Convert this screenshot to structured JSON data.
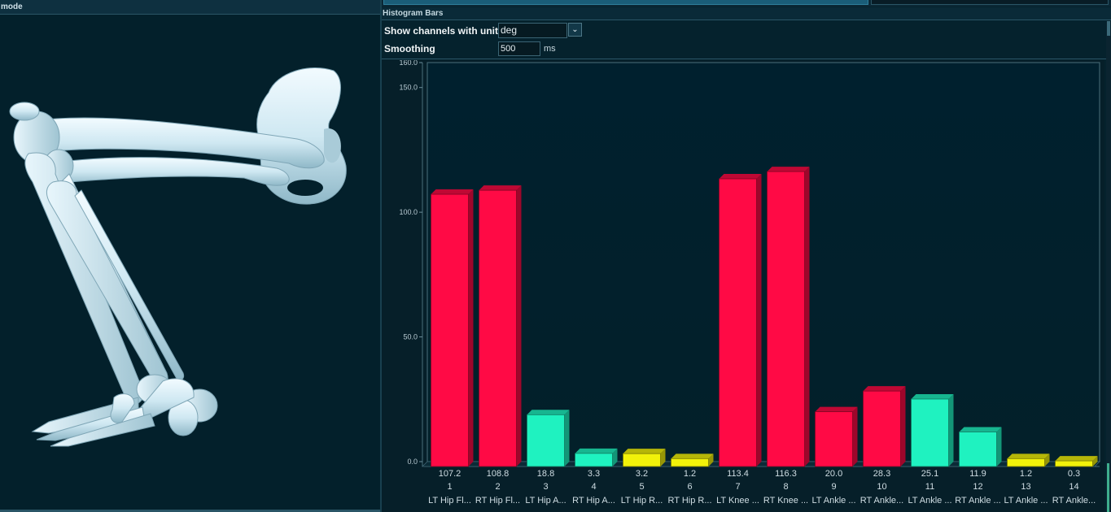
{
  "viewer": {
    "title": "mode"
  },
  "histogram": {
    "title": "Histogram Bars",
    "units_label": "Show channels with units",
    "units_value": "deg",
    "smoothing_label": "Smoothing",
    "smoothing_value": "500",
    "smoothing_unit": "ms"
  },
  "chart_data": {
    "type": "bar",
    "categories": [
      "LT Hip Fl...",
      "RT Hip Fl...",
      "LT Hip A...",
      "RT Hip A...",
      "LT Hip R...",
      "RT Hip R...",
      "LT Knee ...",
      "RT Knee ...",
      "LT Ankle ...",
      "RT Ankle...",
      "LT Ankle ...",
      "RT Ankle ...",
      "LT Ankle ...",
      "RT Ankle..."
    ],
    "indices": [
      "1",
      "2",
      "3",
      "4",
      "5",
      "6",
      "7",
      "8",
      "9",
      "10",
      "11",
      "12",
      "13",
      "14"
    ],
    "values": [
      107.2,
      108.8,
      18.8,
      3.3,
      3.2,
      1.2,
      113.4,
      116.3,
      20.0,
      28.3,
      25.1,
      11.9,
      1.2,
      0.3
    ],
    "value_labels": [
      "107.2",
      "108.8",
      "18.8",
      "3.3",
      "3.2",
      "1.2",
      "113.4",
      "116.3",
      "20.0",
      "28.3",
      "25.1",
      "11.9",
      "1.2",
      "0.3"
    ],
    "colors": [
      "#ff0a45",
      "#ff0a45",
      "#1ff2c0",
      "#1ff2c0",
      "#f2f20a",
      "#f2f20a",
      "#ff0a45",
      "#ff0a45",
      "#ff0a45",
      "#ff0a45",
      "#1ff2c0",
      "#1ff2c0",
      "#f2f20a",
      "#f2f20a"
    ],
    "yticks": [
      0,
      50,
      100,
      150,
      160
    ],
    "ytick_labels": [
      "0.0",
      "50.0",
      "100.0",
      "150.0",
      "160.0"
    ],
    "ylim": [
      0,
      160
    ],
    "title": "",
    "xlabel": "",
    "ylabel": "",
    "grid": false,
    "style": "3d-bar"
  }
}
